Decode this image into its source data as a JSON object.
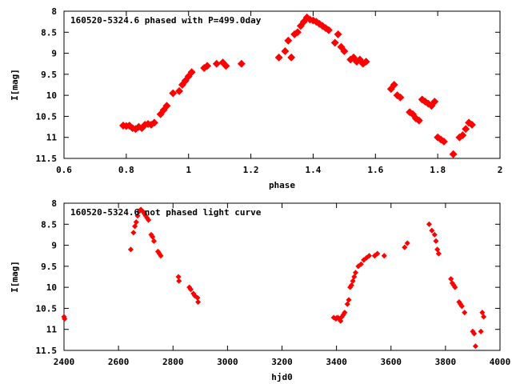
{
  "chart_data": [
    {
      "type": "scatter",
      "title": "160520-5324.6 phased with P=499.0day",
      "xlabel": "phase",
      "ylabel": "I[mag]",
      "xlim": [
        0.6,
        2.0
      ],
      "ylim": [
        8.0,
        11.5
      ],
      "y_inverted": true,
      "grid": false,
      "xticks": [
        0.6,
        0.8,
        1.0,
        1.2,
        1.4,
        1.6,
        1.8,
        2.0
      ],
      "xtick_labels": [
        "0.6",
        "0.8",
        "1",
        "1.2",
        "1.4",
        "1.6",
        "1.8",
        "2"
      ],
      "yticks": [
        8.0,
        8.5,
        9.0,
        9.5,
        10.0,
        10.5,
        11.0,
        11.5
      ],
      "ytick_labels": [
        "8",
        "8.5",
        "9",
        "9.5",
        "10",
        "10.5",
        "11",
        "11.5"
      ],
      "color": "#ff0000",
      "x": [
        0.79,
        0.8,
        0.81,
        0.82,
        0.83,
        0.84,
        0.85,
        0.86,
        0.87,
        0.88,
        0.89,
        0.91,
        0.92,
        0.93,
        0.95,
        0.97,
        0.98,
        0.99,
        1.0,
        1.01,
        1.05,
        1.06,
        1.09,
        1.11,
        1.12,
        1.17,
        1.29,
        1.31,
        1.32,
        1.33,
        1.34,
        1.35,
        1.36,
        1.37,
        1.38,
        1.39,
        1.4,
        1.41,
        1.42,
        1.43,
        1.44,
        1.45,
        1.47,
        1.48,
        1.49,
        1.5,
        1.52,
        1.53,
        1.54,
        1.55,
        1.56,
        1.57,
        1.65,
        1.66,
        1.67,
        1.68,
        1.71,
        1.72,
        1.73,
        1.74,
        1.75,
        1.76,
        1.77,
        1.78,
        1.79,
        1.8,
        1.81,
        1.82,
        1.85,
        1.87,
        1.88,
        1.89,
        1.9,
        1.91
      ],
      "y": [
        10.72,
        10.73,
        10.72,
        10.78,
        10.8,
        10.75,
        10.78,
        10.7,
        10.68,
        10.7,
        10.65,
        10.45,
        10.35,
        10.25,
        9.95,
        9.9,
        9.75,
        9.65,
        9.55,
        9.45,
        9.35,
        9.3,
        9.25,
        9.22,
        9.3,
        9.25,
        9.1,
        8.95,
        8.7,
        9.1,
        8.55,
        8.5,
        8.35,
        8.25,
        8.15,
        8.2,
        8.22,
        8.25,
        8.3,
        8.35,
        8.4,
        8.45,
        8.75,
        8.55,
        8.85,
        8.95,
        9.15,
        9.1,
        9.2,
        9.15,
        9.25,
        9.2,
        9.85,
        9.75,
        10.0,
        10.05,
        10.4,
        10.45,
        10.55,
        10.6,
        10.1,
        10.15,
        10.2,
        10.25,
        10.15,
        11.0,
        11.05,
        11.1,
        11.4,
        11.0,
        10.95,
        10.8,
        10.65,
        10.7
      ]
    },
    {
      "type": "scatter",
      "title": "160520-5324.6 not phased light curve",
      "xlabel": "hjd0",
      "ylabel": "I[mag]",
      "xlim": [
        2400,
        4000
      ],
      "ylim": [
        8.0,
        11.5
      ],
      "y_inverted": true,
      "grid": false,
      "xticks": [
        2400,
        2600,
        2800,
        3000,
        3200,
        3400,
        3600,
        3800,
        4000
      ],
      "xtick_labels": [
        "2400",
        "2600",
        "2800",
        "3000",
        "3200",
        "3400",
        "3600",
        "3800",
        "4000"
      ],
      "yticks": [
        8.0,
        8.5,
        9.0,
        9.5,
        10.0,
        10.5,
        11.0,
        11.5
      ],
      "ytick_labels": [
        "8",
        "8.5",
        "9",
        "9.5",
        "10",
        "10.5",
        "11",
        "11.5"
      ],
      "color": "#ff0000",
      "x": [
        2400,
        2402,
        2645,
        2655,
        2660,
        2665,
        2670,
        2675,
        2682,
        2690,
        2695,
        2700,
        2705,
        2710,
        2720,
        2725,
        2730,
        2745,
        2750,
        2755,
        2820,
        2822,
        2860,
        2865,
        2875,
        2880,
        2890,
        2892,
        3390,
        3398,
        3400,
        3405,
        3410,
        3415,
        3420,
        3425,
        3430,
        3440,
        3445,
        3450,
        3455,
        3460,
        3465,
        3470,
        3480,
        3490,
        3500,
        3510,
        3520,
        3540,
        3550,
        3575,
        3650,
        3660,
        3740,
        3750,
        3760,
        3765,
        3770,
        3775,
        3820,
        3825,
        3830,
        3835,
        3850,
        3855,
        3860,
        3870,
        3900,
        3905,
        3910,
        3930,
        3935,
        3940
      ],
      "y": [
        10.7,
        10.75,
        9.1,
        8.7,
        8.55,
        8.45,
        8.3,
        8.2,
        8.15,
        8.2,
        8.25,
        8.3,
        8.35,
        8.4,
        8.75,
        8.8,
        8.9,
        9.15,
        9.2,
        9.25,
        9.75,
        9.85,
        10.0,
        10.05,
        10.15,
        10.2,
        10.25,
        10.35,
        10.72,
        10.75,
        10.73,
        10.72,
        10.75,
        10.8,
        10.7,
        10.65,
        10.6,
        10.4,
        10.3,
        10.0,
        9.95,
        9.85,
        9.75,
        9.65,
        9.5,
        9.45,
        9.35,
        9.3,
        9.25,
        9.25,
        9.2,
        9.25,
        9.05,
        8.95,
        8.5,
        8.65,
        8.75,
        8.9,
        9.1,
        9.2,
        9.8,
        9.9,
        9.95,
        10.0,
        10.35,
        10.4,
        10.45,
        10.6,
        11.05,
        11.1,
        11.4,
        11.05,
        10.6,
        10.7
      ]
    }
  ]
}
